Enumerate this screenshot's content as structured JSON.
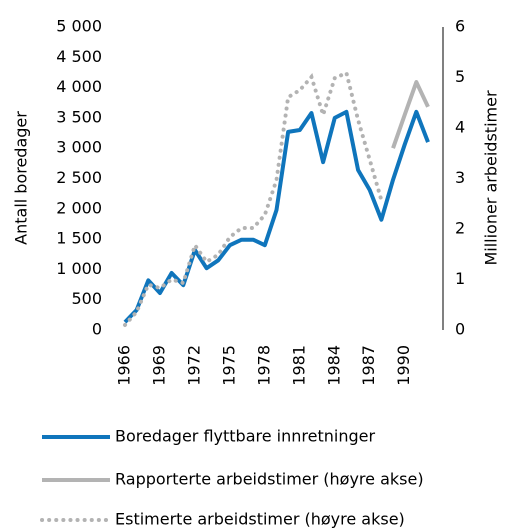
{
  "chart_data": {
    "type": "line",
    "y_label": "Antall boredager",
    "y2_label": "Millioner arbeidstimer",
    "x": [
      1966,
      1967,
      1968,
      1969,
      1970,
      1971,
      1972,
      1973,
      1974,
      1975,
      1976,
      1977,
      1978,
      1979,
      1980,
      1981,
      1982,
      1983,
      1984,
      1985,
      1986,
      1987,
      1988,
      1989,
      1990,
      1991,
      1992
    ],
    "xlim": [
      1966,
      1992
    ],
    "xticks": [
      1966,
      1969,
      1972,
      1975,
      1978,
      1981,
      1984,
      1987,
      1990
    ],
    "ylim": [
      0,
      5000
    ],
    "yticks": [
      0,
      500,
      {
        "value": 1000,
        "label": "1 000"
      },
      {
        "value": 1500,
        "label": "1 500"
      },
      {
        "value": 2000,
        "label": "2 000"
      },
      {
        "value": 2500,
        "label": "2 500"
      },
      {
        "value": 3000,
        "label": "3 000"
      },
      {
        "value": 3500,
        "label": "3 500"
      },
      {
        "value": 4000,
        "label": "4 000"
      },
      {
        "value": 4500,
        "label": "4 500"
      },
      {
        "value": 5000,
        "label": "5 000"
      }
    ],
    "y2lim": [
      0,
      6
    ],
    "y2ticks": [
      0,
      1,
      2,
      3,
      4,
      5,
      6
    ],
    "series": [
      {
        "name": "Boredager flyttbare innretninger",
        "color": "#0f75bc",
        "line_style": "solid",
        "values": [
          130,
          330,
          820,
          610,
          940,
          740,
          1320,
          1020,
          1150,
          1400,
          1490,
          1490,
          1400,
          1980,
          3270,
          3300,
          3580,
          2770,
          3500,
          3600,
          2640,
          2310,
          1820,
          2480,
          3060,
          3600,
          3100
        ]
      },
      {
        "name": "Rapporterte arbeidstimer (høyre akse)",
        "color": "#b3b3b3",
        "line_style": "solid",
        "axis": "y2",
        "values": [
          null,
          null,
          null,
          null,
          null,
          null,
          null,
          null,
          null,
          null,
          null,
          null,
          null,
          null,
          null,
          null,
          null,
          null,
          null,
          null,
          null,
          null,
          null,
          3.6,
          4.26,
          4.91,
          4.42
        ]
      },
      {
        "name": "Estimerte arbeidstimer (høyre akse)",
        "color": "#b3b3b3",
        "line_style": "dotted",
        "axis": "y2",
        "values": [
          0.1,
          0.36,
          0.9,
          0.83,
          1.0,
          0.93,
          1.68,
          1.35,
          1.49,
          1.84,
          2.02,
          2.02,
          2.28,
          2.97,
          4.61,
          4.75,
          5.01,
          4.26,
          4.99,
          5.09,
          4.16,
          3.37,
          2.57,
          null,
          null,
          null,
          null
        ]
      }
    ]
  }
}
